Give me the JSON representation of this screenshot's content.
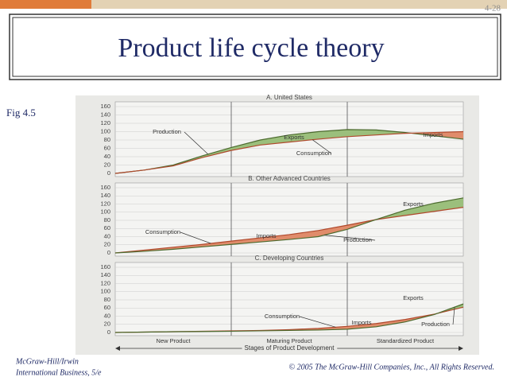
{
  "page_number": "4-28",
  "title": "Product life cycle theory",
  "figure_label": "Fig 4.5",
  "footer_left": [
    "McGraw-Hill/Irwin",
    "International Business, 5/e"
  ],
  "footer_right": "© 2005 The McGraw-Hill Companies, Inc., All Rights Reserved.",
  "x_axis_label": "Stages of Product Development",
  "chart_data": [
    {
      "type": "line",
      "title": "A. United States",
      "categories": [
        null,
        null,
        null,
        null,
        null,
        null,
        null,
        null,
        null,
        null,
        null,
        null,
        null
      ],
      "series": [
        {
          "name": "Production",
          "color": "#4d6b2f",
          "values": [
            0,
            8,
            20,
            42,
            62,
            80,
            92,
            100,
            105,
            104,
            98,
            90,
            82
          ]
        },
        {
          "name": "Consumption",
          "color": "#b0492d",
          "values": [
            0,
            8,
            18,
            38,
            55,
            68,
            75,
            82,
            88,
            92,
            96,
            98,
            100
          ]
        }
      ],
      "annotations": [
        "Exports",
        "Imports"
      ],
      "ylim": [
        0,
        160
      ],
      "yticks": [
        0,
        20,
        40,
        60,
        80,
        100,
        120,
        140,
        160
      ],
      "grid": true
    },
    {
      "type": "line",
      "title": "B. Other Advanced Countries",
      "categories": [
        null,
        null,
        null,
        null,
        null,
        null,
        null,
        null,
        null,
        null,
        null,
        null,
        null
      ],
      "series": [
        {
          "name": "Consumption",
          "color": "#b0492d",
          "values": [
            0,
            7,
            14,
            21,
            29,
            37,
            45,
            55,
            68,
            82,
            92,
            102,
            112
          ]
        },
        {
          "name": "Production",
          "color": "#4d6b2f",
          "values": [
            0,
            4,
            9,
            15,
            21,
            27,
            33,
            40,
            58,
            82,
            105,
            122,
            135
          ]
        }
      ],
      "annotations": [
        "Imports",
        "Exports"
      ],
      "ylim": [
        0,
        160
      ],
      "yticks": [
        0,
        20,
        40,
        60,
        80,
        100,
        120,
        140,
        160
      ],
      "grid": true
    },
    {
      "type": "line",
      "title": "C. Developing Countries",
      "categories": [
        null,
        null,
        "New Product",
        null,
        null,
        null,
        "Maturing Product",
        null,
        null,
        null,
        "Standardized Product",
        null,
        null
      ],
      "series": [
        {
          "name": "Consumption",
          "color": "#b0492d",
          "values": [
            0,
            1,
            2,
            3,
            4,
            5,
            7,
            10,
            15,
            22,
            32,
            45,
            62
          ]
        },
        {
          "name": "Production",
          "color": "#4d6b2f",
          "values": [
            0,
            1,
            2,
            2.5,
            3,
            4,
            5,
            6,
            8,
            14,
            26,
            44,
            70
          ]
        }
      ],
      "annotations": [
        "Imports",
        "Exports"
      ],
      "ylim": [
        0,
        160
      ],
      "yticks": [
        0,
        20,
        40,
        60,
        80,
        100,
        120,
        140,
        160
      ],
      "grid": true
    }
  ]
}
